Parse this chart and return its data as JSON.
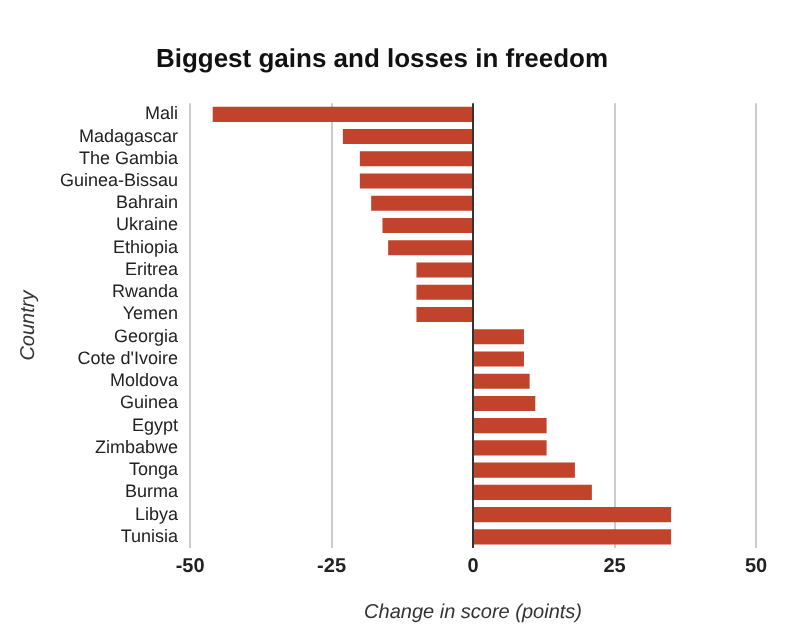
{
  "chart_data": {
    "type": "bar",
    "orientation": "horizontal",
    "title": "Biggest gains and losses in freedom",
    "xlabel": "Change in score (points)",
    "ylabel": "Country",
    "categories": [
      "Mali",
      "Madagascar",
      "The Gambia",
      "Guinea-Bissau",
      "Bahrain",
      "Ukraine",
      "Ethiopia",
      "Eritrea",
      "Rwanda",
      "Yemen",
      "Georgia",
      "Cote d'Ivoire",
      "Moldova",
      "Guinea",
      "Egypt",
      "Zimbabwe",
      "Tonga",
      "Burma",
      "Libya",
      "Tunisia"
    ],
    "values": [
      -46,
      -23,
      -20,
      -20,
      -18,
      -16,
      -15,
      -10,
      -10,
      -10,
      9,
      9,
      10,
      11,
      13,
      13,
      18,
      21,
      35,
      35
    ],
    "color": "#c1432b",
    "xlim": [
      -50,
      50
    ],
    "xticks": [
      -50,
      -25,
      0,
      25,
      50
    ],
    "grid": "x",
    "legend": false
  }
}
